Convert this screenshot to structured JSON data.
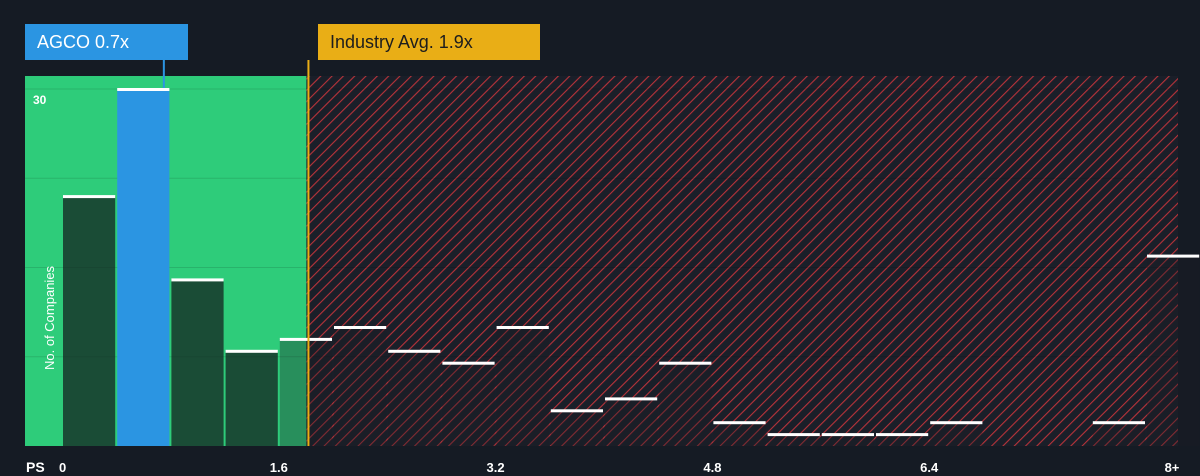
{
  "company_label": "AGCO 0.7x",
  "industry_label": "Industry Avg. 1.9x",
  "colors": {
    "background": "#151b24",
    "fair_zone": "#2ecc7a",
    "company_bar": "#2b95e2",
    "industry_line": "#e9ae16",
    "expensive_hatch": "#c0392b"
  },
  "chart_data": {
    "type": "bar",
    "xlabel": "PS",
    "ylabel": "No. of Companies",
    "x_ticks": [
      "0",
      "1.6",
      "3.2",
      "4.8",
      "6.4",
      "8+"
    ],
    "y_ticks": [
      "30"
    ],
    "ylim": [
      0,
      30
    ],
    "bin_width": 0.4,
    "company_value": 0.7,
    "industry_avg": 1.9,
    "bins": [
      {
        "start": 0.0,
        "value": 21
      },
      {
        "start": 0.4,
        "value": 30,
        "highlight": true
      },
      {
        "start": 0.8,
        "value": 14
      },
      {
        "start": 1.2,
        "value": 8
      },
      {
        "start": 1.6,
        "value": 9
      },
      {
        "start": 2.0,
        "value": 10
      },
      {
        "start": 2.4,
        "value": 8
      },
      {
        "start": 2.8,
        "value": 7
      },
      {
        "start": 3.2,
        "value": 10
      },
      {
        "start": 3.6,
        "value": 3
      },
      {
        "start": 4.0,
        "value": 4
      },
      {
        "start": 4.4,
        "value": 7
      },
      {
        "start": 4.8,
        "value": 2
      },
      {
        "start": 5.2,
        "value": 1
      },
      {
        "start": 5.6,
        "value": 1
      },
      {
        "start": 6.0,
        "value": 1
      },
      {
        "start": 6.4,
        "value": 2
      },
      {
        "start": 7.6,
        "value": 2
      },
      {
        "start": 8.0,
        "value": 16
      }
    ]
  }
}
